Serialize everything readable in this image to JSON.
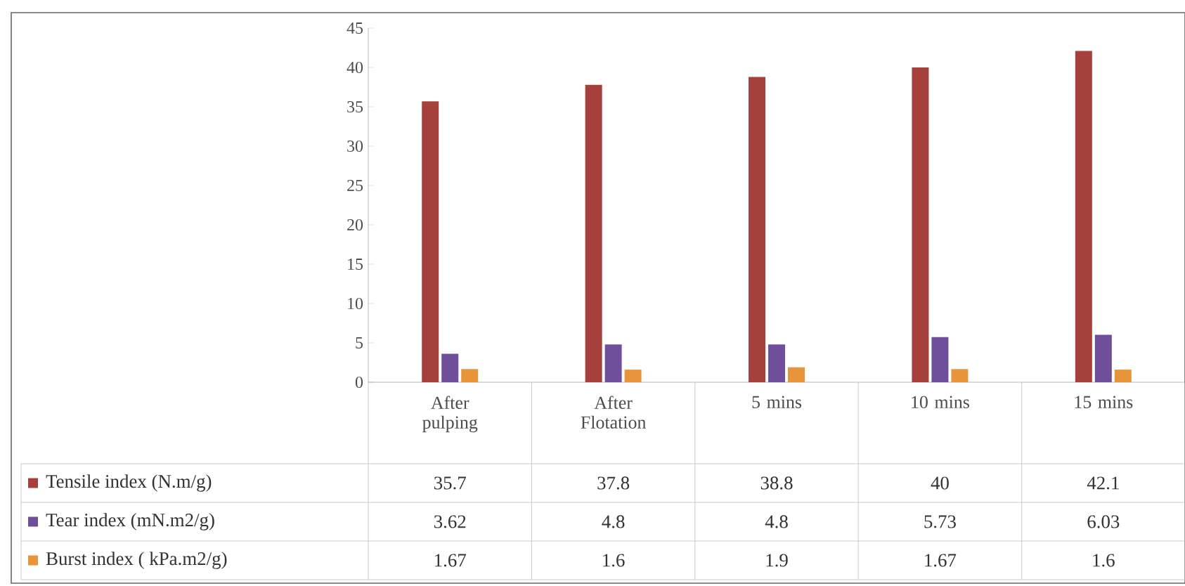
{
  "chart_data": {
    "type": "bar",
    "categories": [
      "After pulping",
      "After Flotation",
      "5 mins",
      "10 mins",
      "15 mins"
    ],
    "series": [
      {
        "name": "Tensile index (N.m/g)",
        "color": "#a5403d",
        "values": [
          35.7,
          37.8,
          38.8,
          40,
          42.1
        ]
      },
      {
        "name": "Tear index (mN.m2/g)",
        "color": "#6f4e9a",
        "values": [
          3.62,
          4.8,
          4.8,
          5.73,
          6.03
        ]
      },
      {
        "name": "Burst index ( kPa.m2/g)",
        "color": "#e8943a",
        "values": [
          1.67,
          1.6,
          1.9,
          1.67,
          1.6
        ]
      }
    ],
    "ylim": [
      0,
      45
    ],
    "yticks": [
      0,
      5,
      10,
      15,
      20,
      25,
      30,
      35,
      40,
      45
    ],
    "data_labels": true,
    "grid": false,
    "legend": "bottom left"
  }
}
